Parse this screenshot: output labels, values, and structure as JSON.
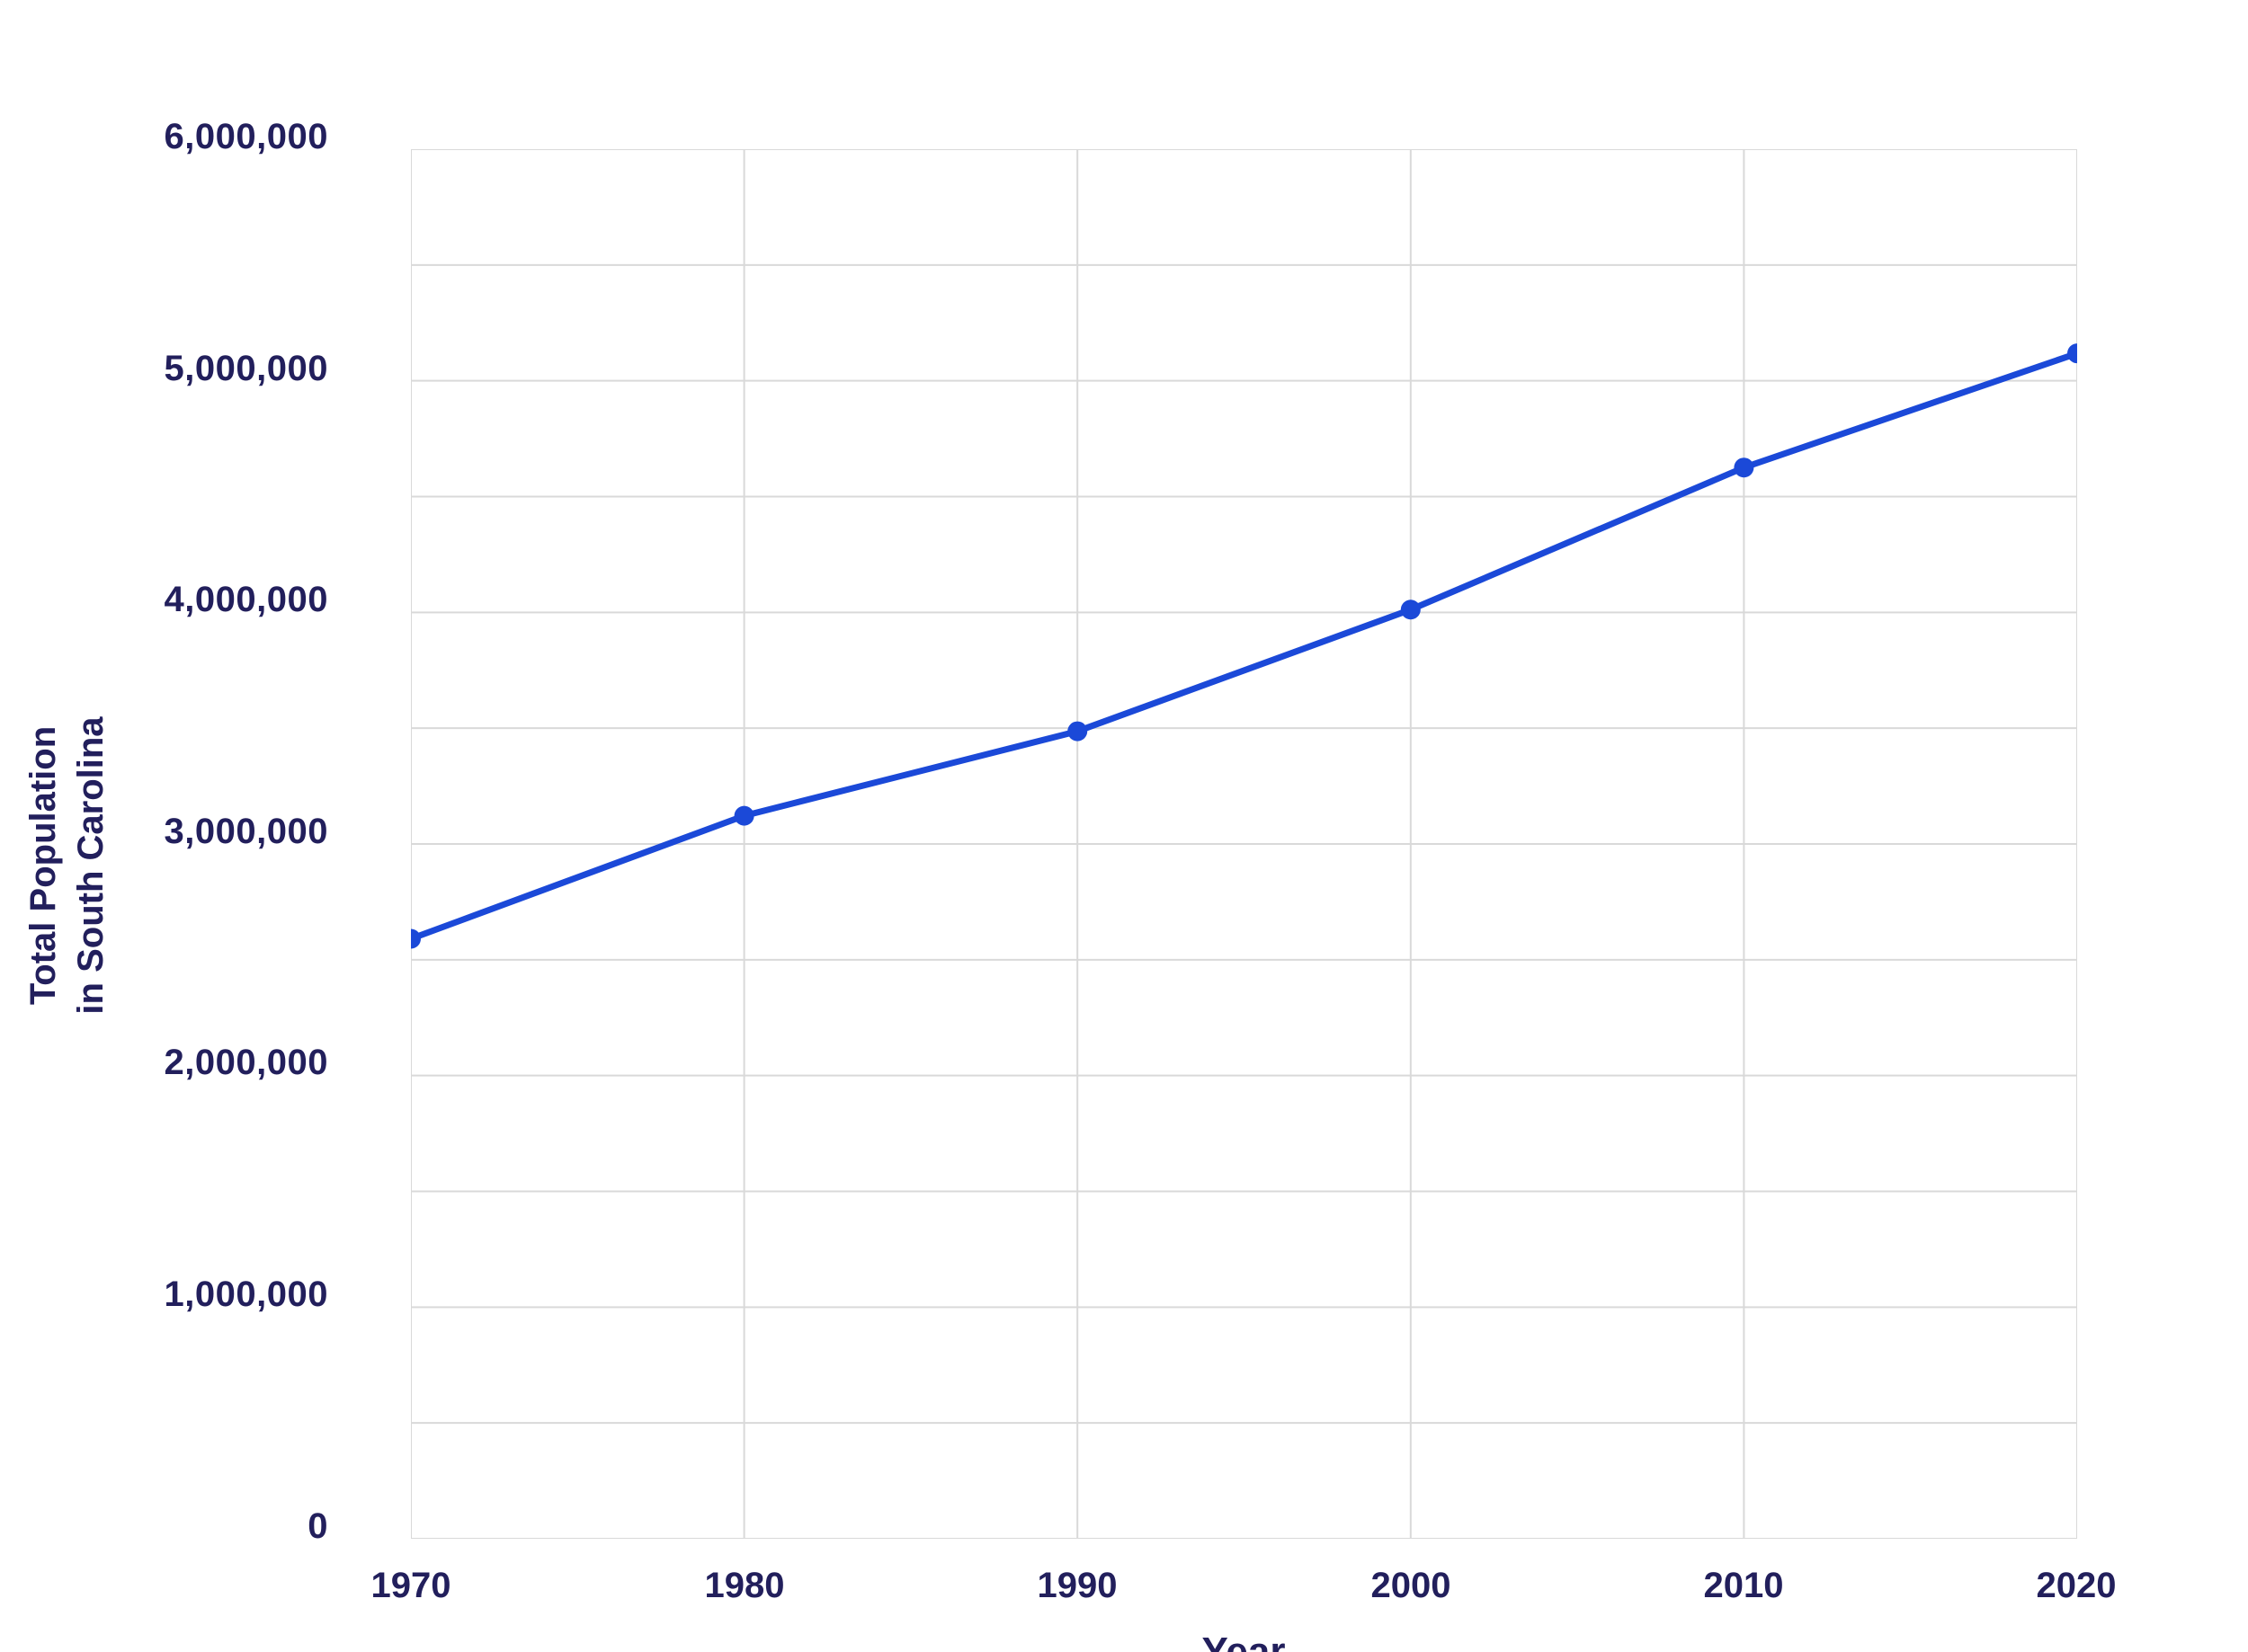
{
  "chart_data": {
    "type": "line",
    "title": "",
    "xlabel": "Year",
    "ylabel": "Total Population in South Carolina",
    "ylabel_lines": [
      "Total Population",
      "in South Carolina"
    ],
    "x": [
      1970,
      1980,
      1990,
      2000,
      2010,
      2020
    ],
    "xtick_labels": [
      "1970",
      "1980",
      "1990",
      "2000",
      "2010",
      "2020"
    ],
    "series": [
      {
        "name": "Total Population in South Carolina",
        "values": [
          2590516,
          3121820,
          3486703,
          4012012,
          4625364,
          5118425
        ]
      }
    ],
    "ylim": [
      0,
      6000000
    ],
    "ytick_step": 1000000,
    "ytick_labels": [
      "6,000,000",
      "5,000,000",
      "4,000,000",
      "3,000,000",
      "2,000,000",
      "1,000,000",
      "0"
    ],
    "minor_grid_step": 500000,
    "grid": true,
    "legend_position": "none",
    "colors": {
      "line": "#1b49d8",
      "marker": "#1b49d8",
      "grid": "#d9d9d9",
      "text": "#221f5c",
      "background": "#ffffff"
    }
  }
}
